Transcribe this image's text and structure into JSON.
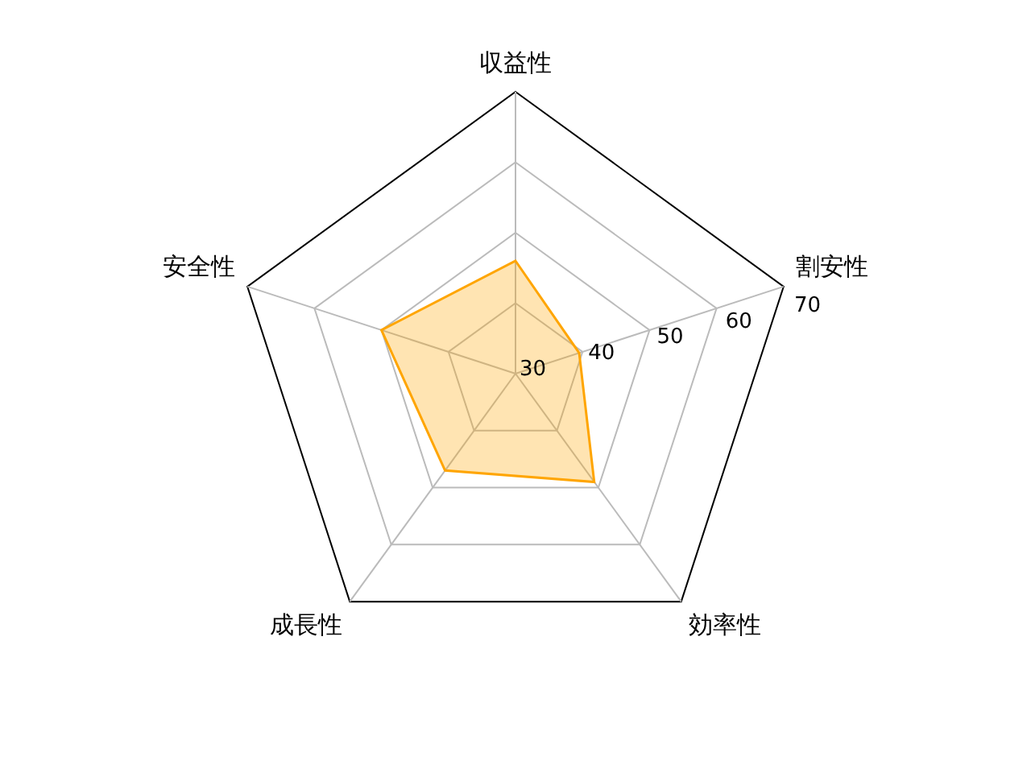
{
  "chart_data": {
    "type": "radar",
    "categories": [
      "収益性",
      "割安性",
      "効率性",
      "成長性",
      "安全性"
    ],
    "series": [
      {
        "color": "#ffa500",
        "values": [
          46,
          39.5,
          49,
          47,
          50
        ]
      }
    ],
    "ylim": [
      30,
      70
    ],
    "yticks": [
      30,
      40,
      50,
      60,
      70
    ],
    "grid": true,
    "legend": false,
    "marker": "none",
    "line_style": "solid"
  }
}
